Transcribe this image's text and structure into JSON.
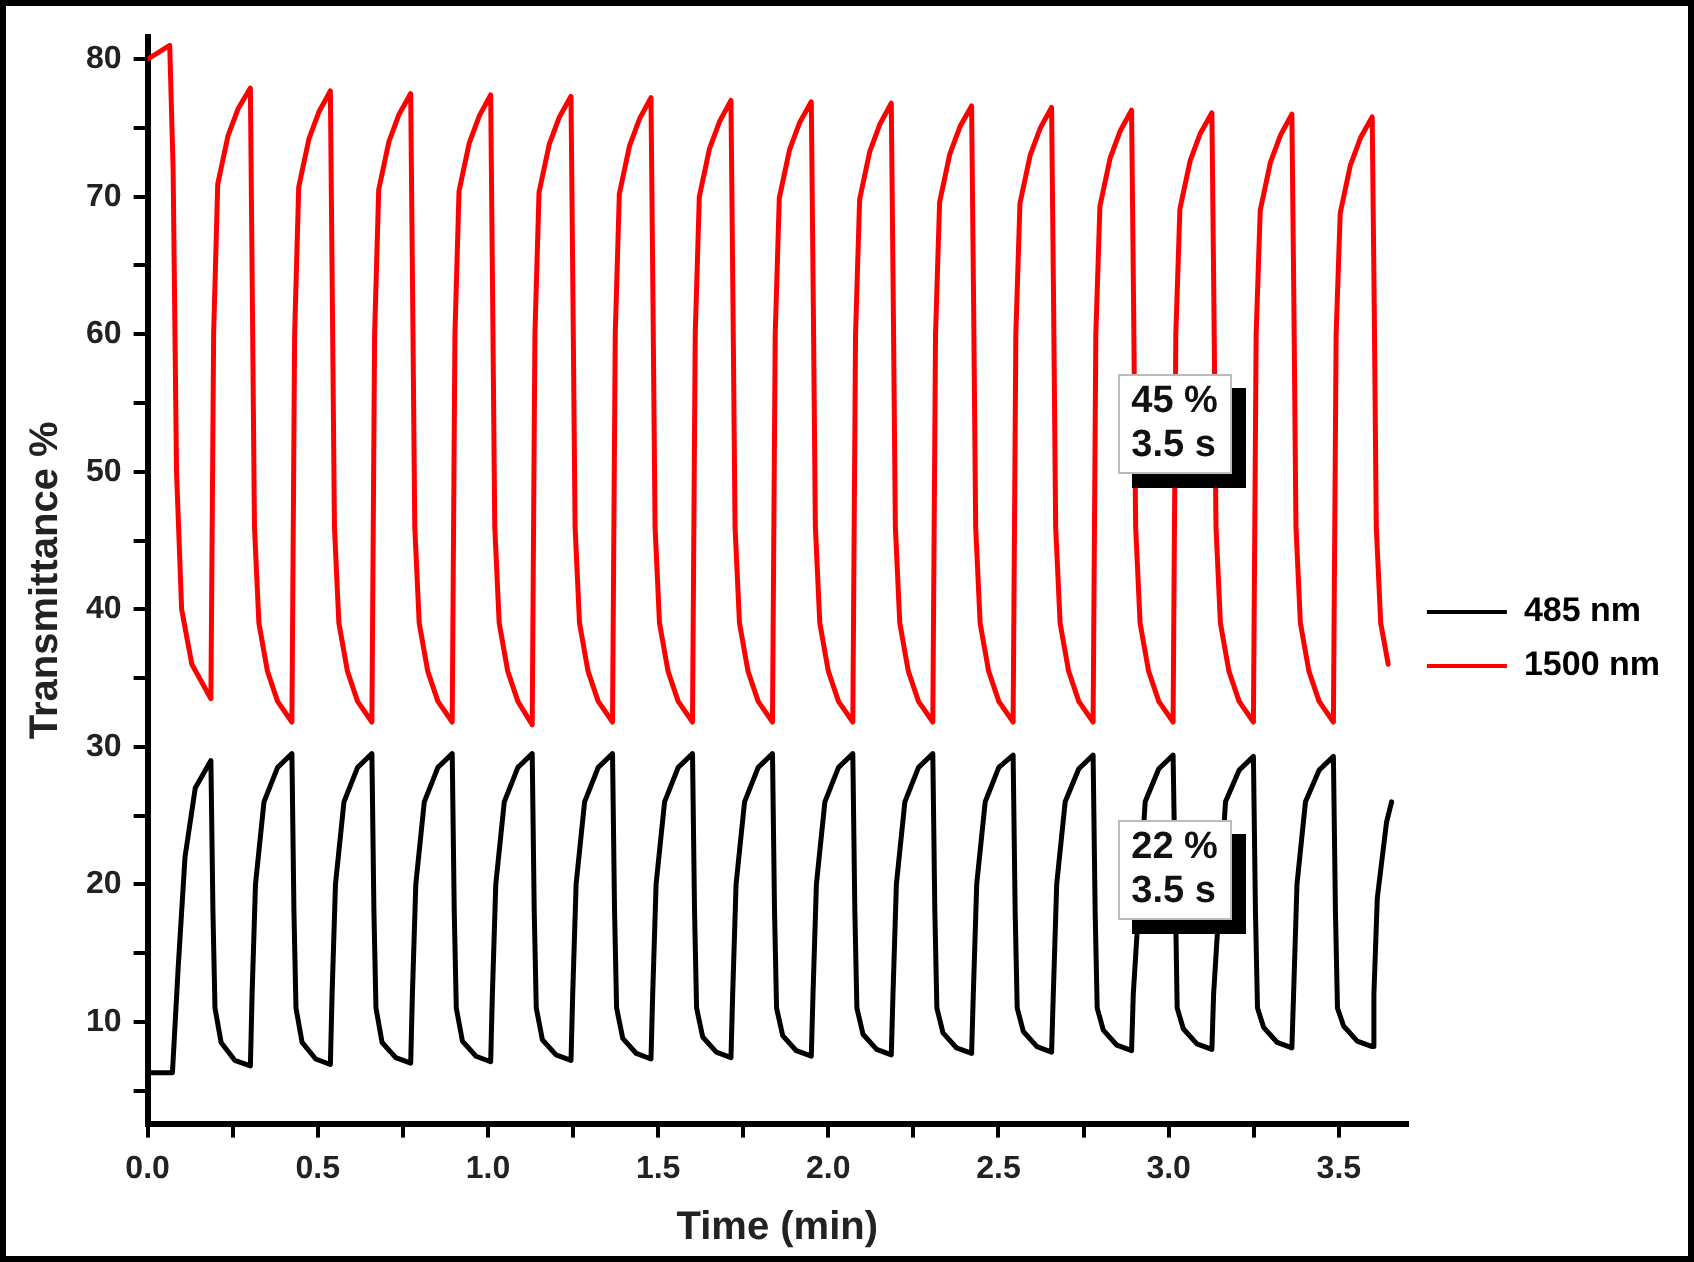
{
  "chart_data": {
    "type": "line",
    "xlabel": "Time (min)",
    "ylabel": "Transmittance %",
    "xlim": [
      0,
      3.7
    ],
    "xticks": [
      {
        "value": 0,
        "label": "0.0"
      },
      {
        "value": 0.25,
        "label": null
      },
      {
        "value": 0.5,
        "label": "0.5"
      },
      {
        "value": 0.75,
        "label": null
      },
      {
        "value": 1,
        "label": "1.0"
      },
      {
        "value": 1.25,
        "label": null
      },
      {
        "value": 1.5,
        "label": "1.5"
      },
      {
        "value": 1.75,
        "label": null
      },
      {
        "value": 2,
        "label": "2.0"
      },
      {
        "value": 2.25,
        "label": null
      },
      {
        "value": 2.5,
        "label": "2.5"
      },
      {
        "value": 2.75,
        "label": null
      },
      {
        "value": 3,
        "label": "3.0"
      },
      {
        "value": 3.25,
        "label": null
      },
      {
        "value": 3.5,
        "label": "3.5"
      }
    ],
    "ylim": [
      2.6,
      81.6
    ],
    "yticks": [
      {
        "value": 5,
        "label": null
      },
      10,
      {
        "value": 15,
        "label": null
      },
      20,
      {
        "value": 25,
        "label": null
      },
      30,
      {
        "value": 35,
        "label": null
      },
      40,
      {
        "value": 45,
        "label": null
      },
      50,
      {
        "value": 55,
        "label": null
      },
      60,
      {
        "value": 65,
        "label": null
      },
      70,
      {
        "value": 75,
        "label": null
      },
      80
    ],
    "grid": false,
    "legend": "right",
    "marker": "none",
    "line_style": "solid",
    "annotations": [
      "45 %\n3.5 s",
      "22 %\n3.5 s"
    ],
    "series": [
      {
        "name": "485 nm",
        "color": "#000000",
        "x": [
          0,
          0.073,
          0.09,
          0.11,
          0.14,
          0.186,
          0.192,
          0.198,
          0.216,
          0.256,
          0.302,
          0.307,
          0.317,
          0.342,
          0.382,
          0.424,
          0.43,
          0.436,
          0.454,
          0.494,
          0.537,
          0.542,
          0.552,
          0.577,
          0.617,
          0.659,
          0.665,
          0.671,
          0.689,
          0.729,
          0.773,
          0.778,
          0.788,
          0.813,
          0.853,
          0.895,
          0.901,
          0.907,
          0.925,
          0.965,
          1.008,
          1.013,
          1.023,
          1.048,
          1.088,
          1.13,
          1.136,
          1.142,
          1.16,
          1.2,
          1.244,
          1.249,
          1.259,
          1.284,
          1.324,
          1.366,
          1.372,
          1.378,
          1.396,
          1.436,
          1.479,
          1.484,
          1.494,
          1.519,
          1.559,
          1.601,
          1.607,
          1.613,
          1.631,
          1.671,
          1.714,
          1.719,
          1.729,
          1.754,
          1.794,
          1.836,
          1.842,
          1.848,
          1.866,
          1.906,
          1.95,
          1.955,
          1.965,
          1.99,
          2.03,
          2.072,
          2.078,
          2.084,
          2.102,
          2.142,
          2.185,
          2.19,
          2.2,
          2.225,
          2.265,
          2.307,
          2.313,
          2.319,
          2.337,
          2.377,
          2.421,
          2.426,
          2.436,
          2.461,
          2.501,
          2.543,
          2.549,
          2.555,
          2.573,
          2.613,
          2.656,
          2.661,
          2.671,
          2.696,
          2.736,
          2.778,
          2.784,
          2.79,
          2.808,
          2.848,
          2.891,
          2.896,
          2.931,
          2.971,
          3.013,
          3.025,
          3.043,
          3.083,
          3.127,
          3.132,
          3.167,
          3.207,
          3.249,
          3.255,
          3.261,
          3.279,
          3.319,
          3.362,
          3.367,
          3.377,
          3.402,
          3.442,
          3.484,
          3.49,
          3.496,
          3.514,
          3.554,
          3.598,
          3.603,
          3.613,
          3.64,
          3.655
        ],
        "values": [
          6.3,
          6.3,
          14,
          22,
          27,
          29,
          18,
          11,
          8.5,
          7.2,
          6.8,
          12,
          20,
          26,
          28.5,
          29.5,
          18,
          11,
          8.5,
          7.3,
          6.9,
          12,
          20,
          26,
          28.5,
          29.5,
          18,
          11,
          8.5,
          7.4,
          7,
          12,
          20,
          26,
          28.5,
          29.5,
          18,
          11,
          8.6,
          7.5,
          7.1,
          12,
          20,
          26,
          28.5,
          29.5,
          18,
          11,
          8.7,
          7.6,
          7.2,
          12,
          20,
          26,
          28.5,
          29.5,
          18,
          11,
          8.8,
          7.7,
          7.3,
          12,
          20,
          26,
          28.5,
          29.5,
          18,
          11,
          8.9,
          7.8,
          7.4,
          12,
          20,
          26,
          28.5,
          29.5,
          18,
          11,
          9,
          7.9,
          7.5,
          12,
          20,
          26,
          28.5,
          29.5,
          18,
          11,
          9.1,
          8,
          7.6,
          12,
          20,
          26,
          28.5,
          29.5,
          18,
          11,
          9.2,
          8.1,
          7.7,
          12,
          20,
          26,
          28.5,
          29.4,
          18,
          11,
          9.3,
          8.2,
          7.8,
          12,
          20,
          26,
          28.4,
          29.4,
          18,
          11,
          9.4,
          8.3,
          7.9,
          12,
          26,
          28.4,
          29.4,
          11,
          9.5,
          8.4,
          8,
          12,
          26,
          28.3,
          29.3,
          18,
          11,
          9.6,
          8.5,
          8.1,
          12,
          20,
          26,
          28.3,
          29.3,
          18,
          11,
          9.7,
          8.6,
          8.2,
          12,
          19,
          24.5,
          26
        ]
      },
      {
        "name": "1500 nm",
        "color": "#ff0000",
        "x": [
          0,
          0.065,
          0.075,
          0.085,
          0.1,
          0.13,
          0.186,
          0.194,
          0.206,
          0.236,
          0.266,
          0.302,
          0.308,
          0.314,
          0.327,
          0.352,
          0.382,
          0.424,
          0.432,
          0.444,
          0.474,
          0.504,
          0.537,
          0.543,
          0.549,
          0.562,
          0.587,
          0.617,
          0.659,
          0.667,
          0.679,
          0.709,
          0.739,
          0.773,
          0.779,
          0.785,
          0.798,
          0.823,
          0.853,
          0.895,
          0.903,
          0.915,
          0.945,
          0.975,
          1.008,
          1.014,
          1.02,
          1.033,
          1.058,
          1.088,
          1.13,
          1.138,
          1.15,
          1.18,
          1.21,
          1.244,
          1.25,
          1.256,
          1.269,
          1.294,
          1.324,
          1.366,
          1.374,
          1.386,
          1.416,
          1.446,
          1.479,
          1.485,
          1.491,
          1.504,
          1.529,
          1.559,
          1.601,
          1.609,
          1.621,
          1.651,
          1.681,
          1.714,
          1.72,
          1.726,
          1.739,
          1.764,
          1.794,
          1.836,
          1.844,
          1.856,
          1.886,
          1.916,
          1.95,
          1.956,
          1.962,
          1.975,
          2,
          2.03,
          2.072,
          2.08,
          2.092,
          2.122,
          2.152,
          2.185,
          2.191,
          2.197,
          2.21,
          2.235,
          2.265,
          2.307,
          2.315,
          2.327,
          2.357,
          2.387,
          2.421,
          2.427,
          2.433,
          2.446,
          2.471,
          2.501,
          2.543,
          2.551,
          2.563,
          2.593,
          2.623,
          2.656,
          2.662,
          2.668,
          2.681,
          2.706,
          2.736,
          2.778,
          2.786,
          2.798,
          2.828,
          2.858,
          2.891,
          2.897,
          2.903,
          2.916,
          2.941,
          2.971,
          3.013,
          3.021,
          3.033,
          3.063,
          3.093,
          3.127,
          3.133,
          3.139,
          3.152,
          3.177,
          3.207,
          3.249,
          3.257,
          3.269,
          3.299,
          3.329,
          3.362,
          3.368,
          3.374,
          3.387,
          3.412,
          3.442,
          3.484,
          3.492,
          3.504,
          3.534,
          3.564,
          3.598,
          3.604,
          3.61,
          3.623,
          3.645
        ],
        "values": [
          80,
          81,
          72,
          50,
          40,
          36,
          33.5,
          60,
          70.9,
          74.4,
          76.4,
          77.9,
          62,
          46,
          39,
          35.5,
          33.3,
          31.8,
          60,
          70.7,
          74.2,
          76.2,
          77.7,
          62,
          46,
          39,
          35.5,
          33.3,
          31.8,
          60,
          70.5,
          74,
          76,
          77.5,
          62,
          46,
          39,
          35.5,
          33.3,
          31.8,
          60,
          70.4,
          73.9,
          75.9,
          77.4,
          62,
          46,
          39,
          35.5,
          33.3,
          31.6,
          60,
          70.3,
          73.8,
          75.8,
          77.3,
          62,
          46,
          39,
          35.5,
          33.3,
          31.8,
          60,
          70.2,
          73.7,
          75.7,
          77.2,
          62,
          46,
          39,
          35.5,
          33.3,
          31.8,
          60,
          70,
          73.5,
          75.5,
          77,
          62,
          46,
          39,
          35.5,
          33.3,
          31.8,
          60,
          69.9,
          73.4,
          75.4,
          76.9,
          62,
          46,
          39,
          35.5,
          33.3,
          31.8,
          60,
          69.8,
          73.3,
          75.3,
          76.8,
          62,
          46,
          39,
          35.5,
          33.3,
          31.8,
          60,
          69.6,
          73.1,
          75.1,
          76.6,
          62,
          46,
          39,
          35.5,
          33.3,
          31.8,
          60,
          69.5,
          73,
          75,
          76.5,
          62,
          46,
          39,
          35.5,
          33.3,
          31.8,
          60,
          69.3,
          72.8,
          74.8,
          76.3,
          62,
          46,
          39,
          35.5,
          33.3,
          31.8,
          60,
          69.1,
          72.6,
          74.6,
          76.1,
          62,
          46,
          39,
          35.5,
          33.3,
          31.8,
          60,
          69,
          72.5,
          74.5,
          76,
          62,
          46,
          39,
          35.5,
          33.3,
          31.8,
          60,
          68.8,
          72.3,
          74.3,
          75.8,
          62,
          46,
          39,
          36
        ]
      }
    ]
  }
}
